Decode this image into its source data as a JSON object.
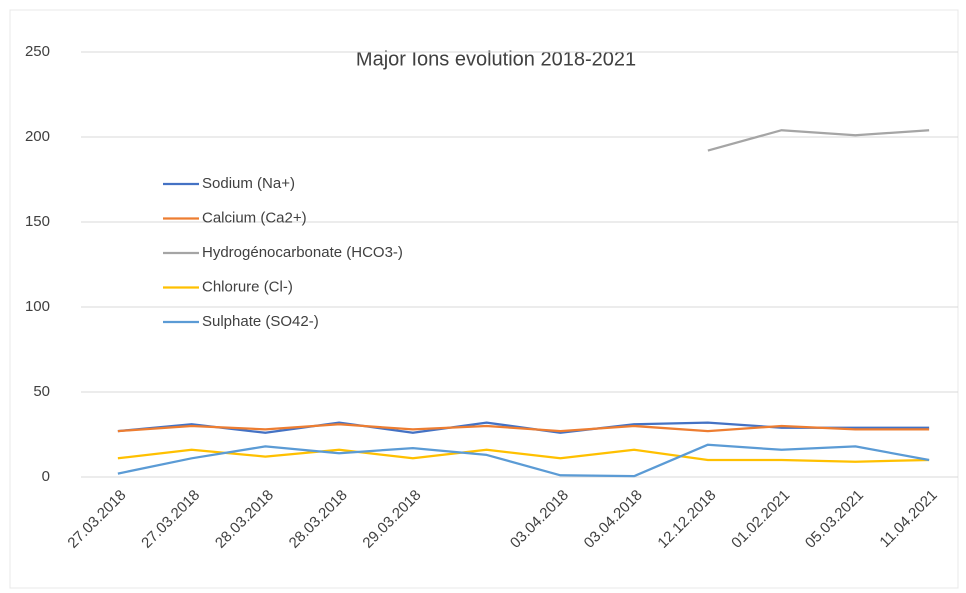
{
  "chart_data": {
    "type": "line",
    "title": "Major Ions evolution 2018-2021",
    "categories": [
      "27.03.2018",
      "27.03.2018",
      "28.03.2018",
      "28.03.2018",
      "29.03.2018",
      null,
      "03.04.2018",
      "03.04.2018",
      "12.12.2018",
      "01.02.2021",
      "05.03.2021",
      "11.04.2021"
    ],
    "series": [
      {
        "name": "Sodium (Na+)",
        "color": "#4472c4",
        "values": [
          27,
          31,
          26,
          32,
          26,
          32,
          26,
          31,
          32,
          29,
          29,
          29
        ]
      },
      {
        "name": "Calcium (Ca2+)",
        "color": "#ed7d31",
        "values": [
          27,
          30,
          28,
          31,
          28,
          30,
          27,
          30,
          27,
          30,
          28,
          28
        ]
      },
      {
        "name": "Hydrogénocarbonate (HCO3-)",
        "color": "#a5a5a5",
        "values": [
          null,
          null,
          null,
          null,
          null,
          null,
          null,
          null,
          192,
          204,
          201,
          204
        ]
      },
      {
        "name": "Chlorure (Cl-)",
        "color": "#ffc000",
        "values": [
          11,
          16,
          12,
          16,
          11,
          16,
          11,
          16,
          10,
          10,
          9,
          10
        ]
      },
      {
        "name": "Sulphate (SO42-)",
        "color": "#5b9bd5",
        "values": [
          2,
          11,
          18,
          14,
          17,
          13,
          1,
          0.5,
          19,
          16,
          18,
          10
        ]
      }
    ],
    "ylim": [
      0,
      250
    ],
    "yticks": [
      0,
      50,
      100,
      150,
      200,
      250
    ],
    "grid": true,
    "legend": "left"
  }
}
